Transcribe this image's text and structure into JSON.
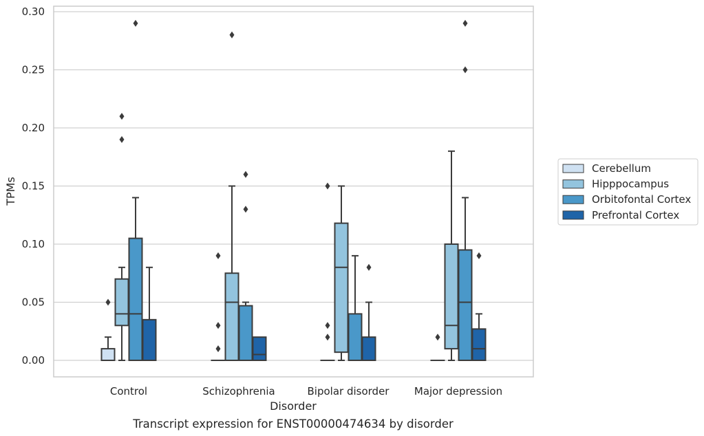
{
  "caption": "Transcript expression for ENST00000474634 by disorder",
  "chart_data": {
    "type": "boxplot",
    "xlabel": "Disorder",
    "ylabel": "TPMs",
    "ylim": [
      -0.014,
      0.309
    ],
    "yticks": [
      "0.00",
      "0.05",
      "0.10",
      "0.15",
      "0.20",
      "0.25",
      "0.30"
    ],
    "grid": true,
    "legend_position": "right",
    "categories": [
      "Control",
      "Schizophrenia",
      "Bipolar disorder",
      "Major depression"
    ],
    "series": [
      {
        "name": "Cerebellum",
        "color": "#cfe1f2",
        "boxes": [
          {
            "q1": 0.0,
            "median": 0.0,
            "q3": 0.01,
            "whisker_low": 0.0,
            "whisker_high": 0.02,
            "outliers": [
              0.05
            ]
          },
          {
            "q1": 0.0,
            "median": 0.0,
            "q3": 0.0,
            "whisker_low": 0.0,
            "whisker_high": 0.0,
            "outliers": [
              0.01,
              0.03,
              0.09
            ]
          },
          {
            "q1": 0.0,
            "median": 0.0,
            "q3": 0.0,
            "whisker_low": 0.0,
            "whisker_high": 0.0,
            "outliers": [
              0.02,
              0.03,
              0.15
            ]
          },
          {
            "q1": 0.0,
            "median": 0.0,
            "q3": 0.0,
            "whisker_low": 0.0,
            "whisker_high": 0.0,
            "outliers": [
              0.02
            ]
          }
        ]
      },
      {
        "name": "Hipppocampus",
        "color": "#93c4de",
        "boxes": [
          {
            "q1": 0.03,
            "median": 0.04,
            "q3": 0.07,
            "whisker_low": 0.0,
            "whisker_high": 0.08,
            "outliers": [
              0.19,
              0.21
            ]
          },
          {
            "q1": 0.0,
            "median": 0.05,
            "q3": 0.075,
            "whisker_low": 0.0,
            "whisker_high": 0.15,
            "outliers": [
              0.28
            ]
          },
          {
            "q1": 0.007,
            "median": 0.08,
            "q3": 0.118,
            "whisker_low": 0.0,
            "whisker_high": 0.15,
            "outliers": []
          },
          {
            "q1": 0.01,
            "median": 0.03,
            "q3": 0.1,
            "whisker_low": 0.0,
            "whisker_high": 0.18,
            "outliers": []
          }
        ]
      },
      {
        "name": "Orbitofontal Cortex",
        "color": "#4a98c9",
        "boxes": [
          {
            "q1": 0.0,
            "median": 0.04,
            "q3": 0.105,
            "whisker_low": 0.0,
            "whisker_high": 0.14,
            "outliers": [
              0.29
            ]
          },
          {
            "q1": 0.0,
            "median": 0.0,
            "q3": 0.047,
            "whisker_low": 0.0,
            "whisker_high": 0.05,
            "outliers": [
              0.13,
              0.16
            ]
          },
          {
            "q1": 0.0,
            "median": 0.0,
            "q3": 0.04,
            "whisker_low": 0.0,
            "whisker_high": 0.09,
            "outliers": []
          },
          {
            "q1": 0.0,
            "median": 0.05,
            "q3": 0.095,
            "whisker_low": 0.0,
            "whisker_high": 0.14,
            "outliers": [
              0.25,
              0.29
            ]
          }
        ]
      },
      {
        "name": "Prefrontal Cortex",
        "color": "#1f64a8",
        "boxes": [
          {
            "q1": 0.0,
            "median": 0.0,
            "q3": 0.035,
            "whisker_low": 0.0,
            "whisker_high": 0.08,
            "outliers": []
          },
          {
            "q1": 0.0,
            "median": 0.005,
            "q3": 0.02,
            "whisker_low": 0.0,
            "whisker_high": 0.02,
            "outliers": []
          },
          {
            "q1": 0.0,
            "median": 0.0,
            "q3": 0.02,
            "whisker_low": 0.0,
            "whisker_high": 0.05,
            "outliers": [
              0.08
            ]
          },
          {
            "q1": 0.0,
            "median": 0.01,
            "q3": 0.027,
            "whisker_low": 0.0,
            "whisker_high": 0.04,
            "outliers": [
              0.09
            ]
          }
        ]
      }
    ]
  }
}
